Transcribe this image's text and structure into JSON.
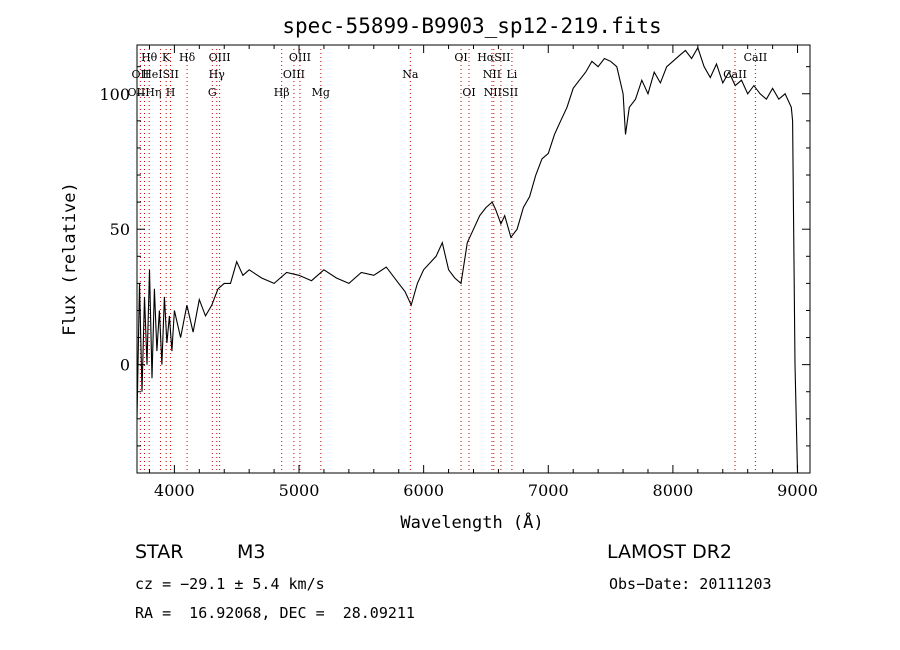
{
  "chart_data": {
    "type": "line",
    "title": "spec-55899-B9903_sp12-219.fits",
    "xlabel": "Wavelength (Å)",
    "ylabel": "Flux (relative)",
    "xlim": [
      3700,
      9100
    ],
    "ylim": [
      -40,
      118
    ],
    "xticks": [
      4000,
      5000,
      6000,
      7000,
      8000,
      9000
    ],
    "yticks": [
      0,
      50,
      100
    ],
    "series": [
      {
        "x": [
          3700,
          3720,
          3740,
          3760,
          3780,
          3800,
          3820,
          3840,
          3860,
          3880,
          3900,
          3920,
          3940,
          3960,
          3980,
          4000,
          4050,
          4100,
          4150,
          4200,
          4250,
          4300,
          4350,
          4400,
          4450,
          4500,
          4550,
          4600,
          4700,
          4800,
          4900,
          5000,
          5100,
          5200,
          5300,
          5400,
          5500,
          5600,
          5700,
          5800,
          5850,
          5900,
          5950,
          6000,
          6100,
          6150,
          6200,
          6250,
          6300,
          6350,
          6400,
          6450,
          6500,
          6550,
          6580,
          6620,
          6650,
          6700,
          6750,
          6800,
          6850,
          6900,
          6950,
          7000,
          7050,
          7100,
          7150,
          7200,
          7250,
          7300,
          7350,
          7400,
          7450,
          7500,
          7550,
          7600,
          7620,
          7650,
          7700,
          7750,
          7800,
          7850,
          7900,
          7950,
          8000,
          8050,
          8100,
          8150,
          8200,
          8250,
          8300,
          8350,
          8400,
          8450,
          8500,
          8550,
          8600,
          8650,
          8700,
          8750,
          8800,
          8850,
          8900,
          8950,
          8960,
          8980,
          9000
        ],
        "values": [
          -20,
          30,
          -10,
          25,
          0,
          35,
          -5,
          28,
          5,
          20,
          0,
          25,
          8,
          18,
          5,
          20,
          10,
          22,
          12,
          24,
          18,
          22,
          28,
          30,
          30,
          38,
          33,
          35,
          32,
          30,
          34,
          33,
          31,
          35,
          32,
          30,
          34,
          33,
          36,
          30,
          27,
          22,
          30,
          35,
          40,
          45,
          35,
          32,
          30,
          45,
          50,
          55,
          58,
          60,
          57,
          52,
          55,
          47,
          50,
          58,
          62,
          70,
          76,
          78,
          85,
          90,
          95,
          102,
          105,
          108,
          112,
          110,
          113,
          112,
          110,
          100,
          85,
          95,
          98,
          105,
          100,
          108,
          104,
          110,
          112,
          114,
          116,
          113,
          117,
          110,
          106,
          111,
          104,
          108,
          103,
          105,
          100,
          103,
          100,
          98,
          102,
          98,
          100,
          95,
          90,
          0,
          -45
        ]
      }
    ],
    "spectral_lines": [
      {
        "label": "Hθ",
        "x": 3798,
        "row": 0
      },
      {
        "label": "K",
        "x": 3934,
        "row": 0
      },
      {
        "label": "Hδ",
        "x": 4102,
        "row": 0
      },
      {
        "label": "OIII",
        "x": 4363,
        "row": 0
      },
      {
        "label": "OIII",
        "x": 5007,
        "row": 0
      },
      {
        "label": "OI",
        "x": 6300,
        "row": 0
      },
      {
        "label": "HαSII",
        "x": 6563,
        "row": 0
      },
      {
        "label": "CaII",
        "x": 8662,
        "row": 0
      },
      {
        "label": "OII",
        "x": 3727,
        "row": 1
      },
      {
        "label": "HeISII",
        "x": 3889,
        "row": 1
      },
      {
        "label": "Hγ",
        "x": 4340,
        "row": 1
      },
      {
        "label": "OIII",
        "x": 4959,
        "row": 1
      },
      {
        "label": "Na",
        "x": 5893,
        "row": 1
      },
      {
        "label": "NII",
        "x": 6548,
        "row": 1
      },
      {
        "label": "Li",
        "x": 6708,
        "row": 1
      },
      {
        "label": "CaII",
        "x": 8498,
        "row": 1
      },
      {
        "label": "OIIHη",
        "x": 3760,
        "row": 2
      },
      {
        "label": "H",
        "x": 3969,
        "row": 2
      },
      {
        "label": "G",
        "x": 4304,
        "row": 2
      },
      {
        "label": "Hβ",
        "x": 4861,
        "row": 2
      },
      {
        "label": "Mg",
        "x": 5175,
        "row": 2
      },
      {
        "label": "OI",
        "x": 6364,
        "row": 2
      },
      {
        "label": "NIISII",
        "x": 6620,
        "row": 2
      }
    ],
    "grid": false,
    "line_color": "#000000",
    "marker_color": "#cc0000"
  },
  "info": {
    "class": "STAR",
    "subclass": "M3",
    "survey": "LAMOST DR2",
    "cz": "cz = −29.1 ± 5.4 km/s",
    "obs_date": "Obs−Date: 20111203",
    "coords": "RA =  16.92068, DEC =  28.09211"
  }
}
